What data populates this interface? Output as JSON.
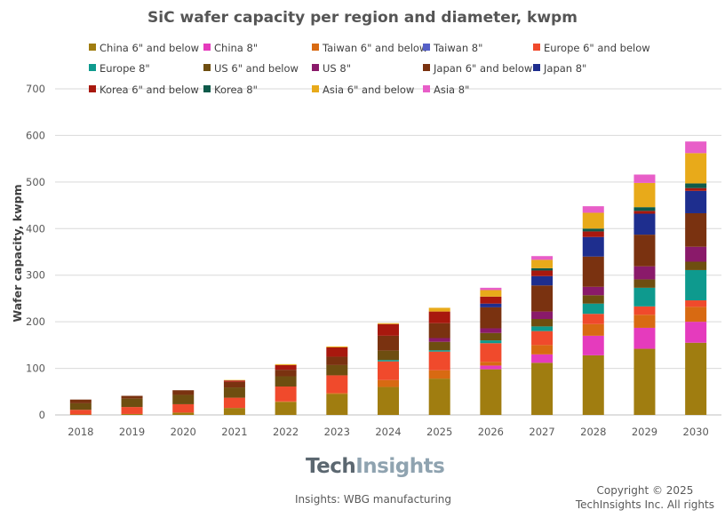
{
  "chart_data": {
    "type": "bar",
    "stacked": true,
    "title": "SiC wafer capacity per region and diameter, kwpm",
    "ylabel": "Wafer capacity, kwpm",
    "xlabel": "",
    "ylim": [
      0,
      700
    ],
    "yticks": [
      0,
      100,
      200,
      300,
      400,
      500,
      600,
      700
    ],
    "grid": true,
    "legend_position": "top",
    "categories": [
      "2018",
      "2019",
      "2020",
      "2021",
      "2022",
      "2023",
      "2024",
      "2025",
      "2026",
      "2027",
      "2028",
      "2029",
      "2030"
    ],
    "series": [
      {
        "name": "China 6\" and below",
        "color": "#a07d10",
        "values": [
          1,
          2,
          5,
          15,
          28,
          45,
          60,
          78,
          98,
          112,
          128,
          142,
          155
        ]
      },
      {
        "name": "China 8\"",
        "color": "#e53bbd",
        "values": [
          0,
          0,
          0,
          0,
          0,
          0,
          0,
          0,
          8,
          18,
          42,
          45,
          45
        ]
      },
      {
        "name": "Taiwan 6\" and below",
        "color": "#d86a12",
        "values": [
          0,
          0,
          0,
          0,
          1,
          2,
          15,
          18,
          8,
          20,
          25,
          28,
          32
        ]
      },
      {
        "name": "Taiwan 8\"",
        "color": "#5560c7",
        "values": [
          0,
          0,
          0,
          0,
          0,
          0,
          0,
          0,
          0,
          0,
          0,
          0,
          0
        ]
      },
      {
        "name": "Europe 6\" and below",
        "color": "#f04a2c",
        "values": [
          10,
          15,
          18,
          22,
          32,
          38,
          40,
          40,
          40,
          30,
          22,
          18,
          14
        ]
      },
      {
        "name": "Europe 8\"",
        "color": "#0e9a8e",
        "values": [
          0,
          0,
          0,
          0,
          0,
          0,
          3,
          3,
          6,
          10,
          22,
          40,
          65
        ]
      },
      {
        "name": "US 6\" and below",
        "color": "#6e4e10",
        "values": [
          14,
          18,
          20,
          22,
          22,
          22,
          20,
          18,
          16,
          16,
          18,
          18,
          18
        ]
      },
      {
        "name": "US 8\"",
        "color": "#8a1a6a",
        "values": [
          0,
          0,
          0,
          0,
          0,
          0,
          0,
          8,
          10,
          16,
          18,
          28,
          32
        ]
      },
      {
        "name": "Japan 6\" and below",
        "color": "#7a3210",
        "values": [
          8,
          6,
          10,
          12,
          14,
          18,
          32,
          32,
          45,
          56,
          65,
          68,
          72
        ]
      },
      {
        "name": "Japan 8\"",
        "color": "#1e2e8e",
        "values": [
          0,
          0,
          0,
          0,
          0,
          0,
          0,
          0,
          8,
          20,
          42,
          45,
          48
        ]
      },
      {
        "name": "Korea 6\" and below",
        "color": "#a8180e",
        "values": [
          0,
          0,
          0,
          3,
          10,
          20,
          25,
          25,
          15,
          12,
          12,
          6,
          6
        ]
      },
      {
        "name": "Korea 8\"",
        "color": "#0e5a4a",
        "values": [
          0,
          0,
          0,
          0,
          0,
          0,
          0,
          0,
          0,
          5,
          6,
          8,
          10
        ]
      },
      {
        "name": "Asia 6\" and below",
        "color": "#e8aa1a",
        "values": [
          0,
          0,
          0,
          1,
          2,
          2,
          2,
          8,
          14,
          18,
          34,
          52,
          65
        ]
      },
      {
        "name": "Asia 8\"",
        "color": "#e85ec8",
        "values": [
          0,
          0,
          0,
          0,
          0,
          0,
          0,
          0,
          5,
          8,
          14,
          18,
          25
        ]
      }
    ]
  },
  "branding": {
    "logo_tech": "Tech",
    "logo_insights": "Insights",
    "footer_left": "Insights: WBG manufacturing",
    "copyright_line1": "Copyright © 2025",
    "copyright_line2": "TechInsights Inc.  All rights"
  }
}
